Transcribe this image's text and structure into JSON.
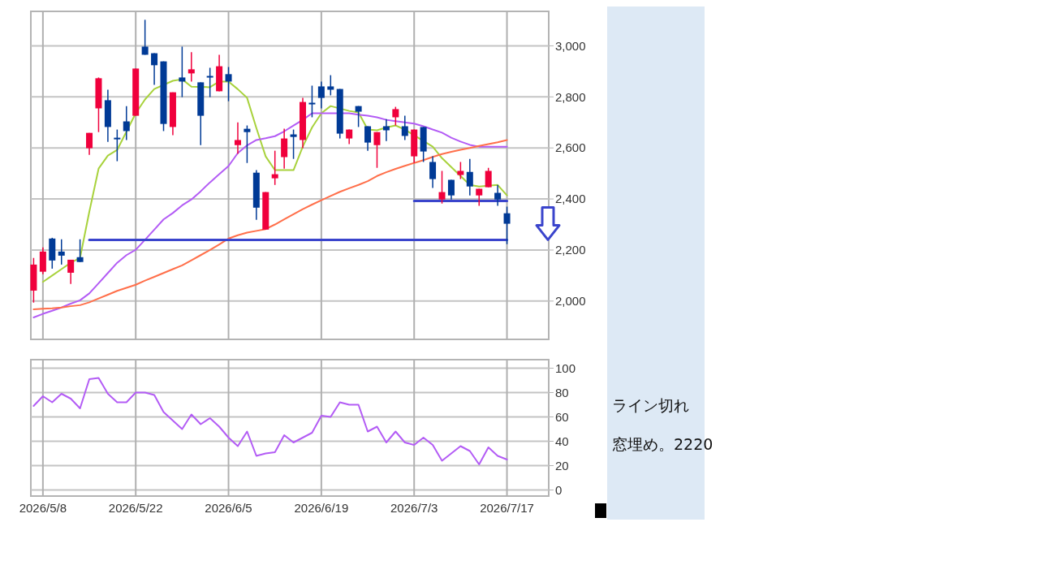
{
  "chart_data": [
    {
      "type": "candlestick",
      "categories": [
        null,
        "2026/5/8",
        null,
        null,
        null,
        null,
        null,
        null,
        null,
        null,
        null,
        "2026/5/22",
        null,
        null,
        null,
        null,
        null,
        null,
        null,
        null,
        null,
        "2026/6/5",
        null,
        null,
        null,
        null,
        null,
        null,
        null,
        null,
        null,
        "2026/6/19",
        null,
        null,
        null,
        null,
        null,
        null,
        null,
        null,
        null,
        "2026/7/3",
        null,
        null,
        null,
        null,
        null,
        null,
        null,
        null,
        null,
        "2026/7/17"
      ],
      "ohlc": [
        [
          2041,
          2169,
          1994,
          2143
        ],
        [
          2115,
          2210,
          2105,
          2194
        ],
        [
          2245,
          2248,
          2127,
          2159
        ],
        [
          2194,
          2242,
          2143,
          2178
        ],
        [
          2111,
          2162,
          2067,
          2162
        ],
        [
          2172,
          2242,
          2153,
          2153
        ],
        [
          2599,
          2659,
          2573,
          2659
        ],
        [
          2755,
          2876,
          2662,
          2873
        ],
        [
          2787,
          2828,
          2624,
          2682
        ],
        [
          2640,
          2672,
          2548,
          2636
        ],
        [
          2704,
          2764,
          2631,
          2666
        ],
        [
          2726,
          2911,
          2726,
          2911
        ],
        [
          2997,
          3102,
          2965,
          2965
        ],
        [
          2971,
          2971,
          2847,
          2924
        ],
        [
          2939,
          2939,
          2666,
          2694
        ],
        [
          2682,
          2818,
          2650,
          2818
        ],
        [
          2876,
          2997,
          2799,
          2860
        ],
        [
          2892,
          2975,
          2860,
          2908
        ],
        [
          2857,
          2857,
          2611,
          2726
        ],
        [
          2882,
          2914,
          2799,
          2876
        ],
        [
          2822,
          2965,
          2822,
          2920
        ],
        [
          2889,
          2917,
          2783,
          2860
        ],
        [
          2611,
          2700,
          2577,
          2631
        ],
        [
          2675,
          2688,
          2541,
          2662
        ],
        [
          2503,
          2513,
          2318,
          2366
        ],
        [
          2280,
          2427,
          2280,
          2427
        ],
        [
          2481,
          2589,
          2455,
          2497
        ],
        [
          2564,
          2675,
          2519,
          2637
        ],
        [
          2653,
          2672,
          2557,
          2643
        ],
        [
          2631,
          2796,
          2599,
          2780
        ],
        [
          2777,
          2844,
          2720,
          2771
        ],
        [
          2841,
          2860,
          2755,
          2796
        ],
        [
          2841,
          2885,
          2806,
          2828
        ],
        [
          2831,
          2831,
          2637,
          2656
        ],
        [
          2637,
          2672,
          2615,
          2672
        ],
        [
          2764,
          2764,
          2682,
          2742
        ],
        [
          2685,
          2685,
          2589,
          2621
        ],
        [
          2611,
          2662,
          2522,
          2662
        ],
        [
          2685,
          2713,
          2627,
          2669
        ],
        [
          2720,
          2761,
          2688,
          2752
        ],
        [
          2685,
          2726,
          2631,
          2647
        ],
        [
          2567,
          2672,
          2541,
          2672
        ],
        [
          2682,
          2682,
          2545,
          2586
        ],
        [
          2545,
          2567,
          2443,
          2478
        ],
        [
          2398,
          2510,
          2382,
          2427
        ],
        [
          2475,
          2475,
          2398,
          2414
        ],
        [
          2494,
          2545,
          2478,
          2510
        ],
        [
          2506,
          2557,
          2414,
          2449
        ],
        [
          2414,
          2440,
          2373,
          2440
        ],
        [
          2446,
          2522,
          2446,
          2510
        ],
        [
          2424,
          2455,
          2373,
          2398
        ],
        [
          2344,
          2370,
          2223,
          2303
        ]
      ],
      "colors": [
        "#f0003c",
        "#f0003c",
        "#003a96",
        "#003a96",
        "#f0003c",
        "#003a96",
        "#f0003c",
        "#f0003c",
        "#003a96",
        "#003a96",
        "#003a96",
        "#f0003c",
        "#003a96",
        "#003a96",
        "#003a96",
        "#f0003c",
        "#003a96",
        "#f0003c",
        "#003a96",
        "#003a96",
        "#f0003c",
        "#003a96",
        "#f0003c",
        "#003a96",
        "#003a96",
        "#f0003c",
        "#f0003c",
        "#f0003c",
        "#003a96",
        "#f0003c",
        "#003a96",
        "#003a96",
        "#003a96",
        "#003a96",
        "#f0003c",
        "#003a96",
        "#003a96",
        "#f0003c",
        "#003a96",
        "#f0003c",
        "#003a96",
        "#f0003c",
        "#003a96",
        "#003a96",
        "#f0003c",
        "#003a96",
        "#f0003c",
        "#003a96",
        "#f0003c",
        "#f0003c",
        "#003a96",
        "#003a96"
      ],
      "series": [
        {
          "type": "line",
          "color": "#a8d23c",
          "values": [
            null,
            2075,
            2100,
            2125,
            2150,
            2169,
            2350,
            2519,
            2570,
            2592,
            null,
            2736,
            2790,
            2831,
            null,
            2863,
            2869,
            2840,
            null,
            2838,
            2860,
            2860,
            2830,
            2796,
            2678,
            2567,
            2513,
            2513,
            2513,
            2605,
            2680,
            2736,
            2764,
            null,
            2745,
            2739,
            2672,
            2669,
            2680,
            2688,
            2672,
            null,
            null,
            2605,
            2560,
            2525,
            2490,
            2455,
            2449,
            null,
            2455,
            2414
          ]
        },
        {
          "type": "line",
          "color": "#b35cf5",
          "values": [
            1936,
            1950,
            1962,
            1975,
            1990,
            2003,
            2030,
            2070,
            2110,
            2150,
            2180,
            2201,
            2240,
            2280,
            2320,
            2345,
            2375,
            2398,
            2430,
            2465,
            2497,
            2529,
            2580,
            2610,
            2631,
            2638,
            2646,
            2665,
            2688,
            2710,
            2736,
            2736,
            2736,
            null,
            2736,
            2730,
            2726,
            2720,
            2710,
            2705,
            2700,
            2695,
            2685,
            2672,
            2660,
            2640,
            2625,
            2612,
            2605,
            2605,
            2605,
            2605
          ]
        },
        {
          "type": "line",
          "color": "#ff6f4a",
          "values": [
            1968,
            1970,
            1972,
            1975,
            1980,
            1984,
            1995,
            2010,
            2025,
            2040,
            2052,
            2064,
            2080,
            2095,
            2110,
            2125,
            2140,
            2160,
            2180,
            2200,
            2222,
            2245,
            2258,
            2268,
            2275,
            2282,
            2300,
            2320,
            2340,
            2360,
            2378,
            2395,
            2412,
            2428,
            2442,
            2455,
            2470,
            2490,
            2505,
            2518,
            2530,
            2541,
            2552,
            2565,
            2576,
            2585,
            2593,
            2600,
            2608,
            2615,
            2622,
            2631
          ]
        },
        {
          "type": "line",
          "color": "#3a44cc",
          "values": [
            null,
            null,
            null,
            null,
            null,
            null,
            2240,
            2240,
            2240,
            2240,
            2240,
            2240,
            2240,
            2240,
            2240,
            2240,
            2240,
            2240,
            2240,
            2240,
            2240,
            2240,
            2240,
            2240,
            2240,
            2240,
            2240,
            2240,
            2240,
            2240,
            2240,
            2240,
            2240,
            2240,
            2240,
            2240,
            2240,
            2240,
            2240,
            2240,
            2240,
            2240,
            2240,
            2240,
            2240,
            2240,
            2240,
            2240,
            2240,
            2240,
            2240,
            2240
          ]
        },
        {
          "type": "line",
          "color": "#3a44cc",
          "values": [
            null,
            null,
            null,
            null,
            null,
            null,
            null,
            null,
            null,
            null,
            null,
            null,
            null,
            null,
            null,
            null,
            null,
            null,
            null,
            null,
            null,
            null,
            null,
            null,
            null,
            null,
            null,
            null,
            null,
            null,
            null,
            null,
            null,
            null,
            null,
            null,
            null,
            null,
            null,
            null,
            null,
            2392,
            2392,
            2392,
            2392,
            2392,
            2392,
            2392,
            2392,
            2392,
            2392,
            2392
          ]
        }
      ],
      "ylim": [
        1850,
        3135
      ],
      "yticks": [
        {
          "value": 2000,
          "label": "2,000"
        },
        {
          "value": 2200,
          "label": "2,200"
        },
        {
          "value": 2400,
          "label": "2,400"
        },
        {
          "value": 2600,
          "label": "2,600"
        },
        {
          "value": 2800,
          "label": "2,800"
        },
        {
          "value": 3000,
          "label": "3,000"
        }
      ],
      "grid": true,
      "tick_labels": "y",
      "annotations": [
        "ライン切れ",
        "窓埋め。2220"
      ]
    },
    {
      "type": "line",
      "categories": [
        null,
        "2026/5/8",
        null,
        null,
        null,
        null,
        null,
        null,
        null,
        null,
        null,
        "2026/5/22",
        null,
        null,
        null,
        null,
        null,
        null,
        null,
        null,
        null,
        "2026/6/5",
        null,
        null,
        null,
        null,
        null,
        null,
        null,
        null,
        null,
        "2026/6/19",
        null,
        null,
        null,
        null,
        null,
        null,
        null,
        null,
        null,
        "2026/7/3",
        null,
        null,
        null,
        null,
        null,
        null,
        null,
        null,
        null,
        "2026/7/17"
      ],
      "series": [
        {
          "color": "#b35cf5",
          "values": [
            69,
            77,
            72,
            79,
            75,
            67,
            91,
            92,
            79,
            72,
            72,
            80,
            80,
            78,
            64,
            57,
            50,
            62,
            54,
            59,
            52,
            43,
            36,
            48,
            28,
            30,
            31,
            45,
            39,
            43,
            47,
            61,
            60,
            72,
            70,
            70,
            48,
            52,
            39,
            48,
            39,
            37,
            43,
            37,
            24,
            30,
            36,
            32,
            21,
            35,
            28,
            25
          ]
        }
      ],
      "ylim": [
        -5,
        107
      ],
      "yticks": [
        0,
        20,
        40,
        60,
        80,
        100
      ],
      "grid": true
    }
  ]
}
